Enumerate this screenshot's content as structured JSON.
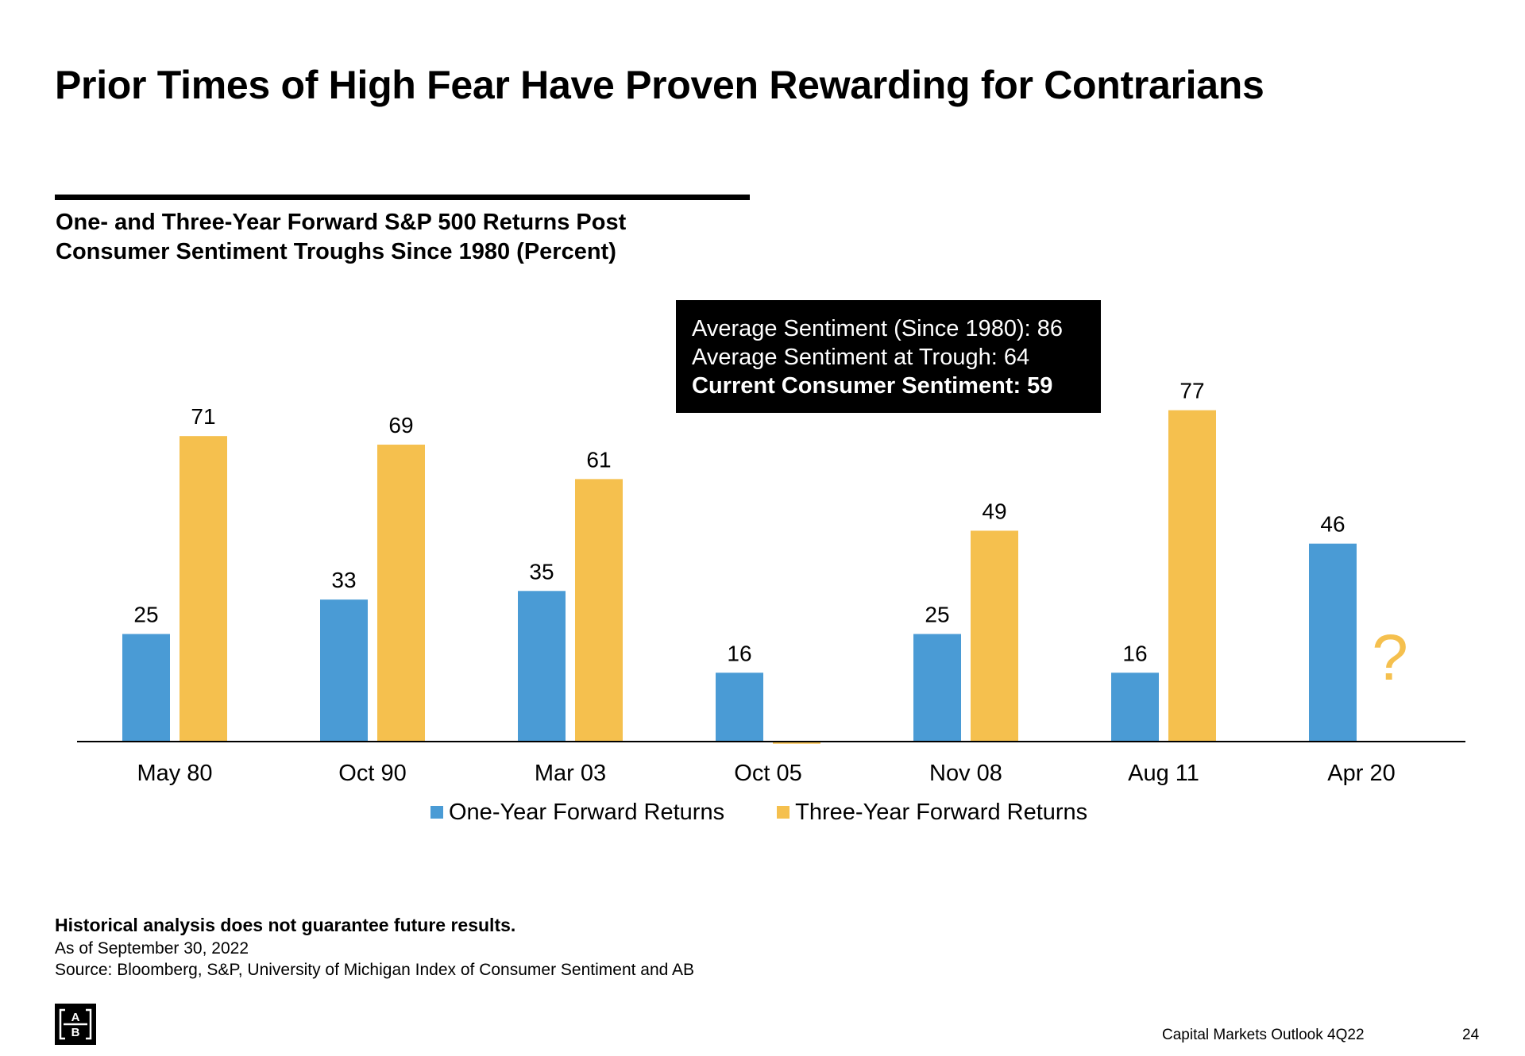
{
  "title": "Prior Times of High Fear Have Proven Rewarding for Contrarians",
  "subtitle": {
    "line1": "One- and Three-Year Forward S&P 500 Returns Post",
    "line2": "Consumer Sentiment Troughs Since 1980 (Percent)"
  },
  "callout": {
    "line1": "Average Sentiment (Since 1980): 86",
    "line2": "Average Sentiment at Trough: 64",
    "line3": "Current Consumer Sentiment: 59"
  },
  "chart_data": {
    "type": "bar",
    "categories": [
      "May 80",
      "Oct 90",
      "Mar 03",
      "Oct 05",
      "Nov 08",
      "Aug 11",
      "Apr 20"
    ],
    "series": [
      {
        "name": "One-Year Forward Returns",
        "values": [
          25,
          33,
          35,
          16,
          25,
          16,
          46
        ],
        "labels": [
          "25",
          "33",
          "35",
          "16",
          "25",
          "16",
          "46"
        ],
        "color": "#4a9bd5"
      },
      {
        "name": "Three-Year Forward Returns",
        "values": [
          71,
          69,
          61,
          -0.5,
          49,
          77,
          null
        ],
        "labels": [
          "71",
          "69",
          "61",
          "",
          "49",
          "77",
          "?"
        ],
        "color": "#f5c04e"
      }
    ],
    "ylim": [
      -1,
      80
    ],
    "grid": false,
    "legend": "bottom-center",
    "missing_marker": "?"
  },
  "footnotes": {
    "disclaimer": "Historical analysis does not guarantee future results.",
    "as_of": "As of September 30, 2022",
    "source": "Source: Bloomberg, S&P, University of Michigan Index of Consumer Sentiment and AB"
  },
  "footer": {
    "publication": "Capital Markets Outlook 4Q22",
    "page_number": "24"
  },
  "logo": {
    "top": "A",
    "bottom": "B"
  }
}
